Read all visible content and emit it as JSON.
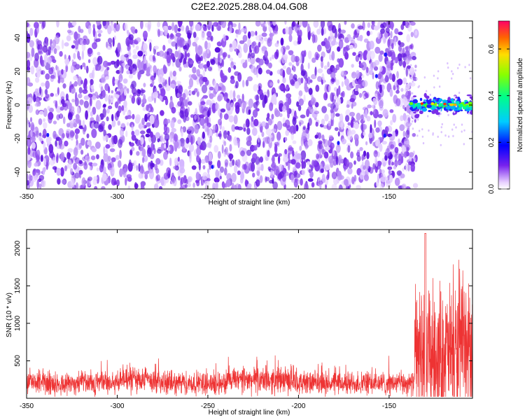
{
  "chart_data": [
    {
      "type": "heatmap",
      "title": "C2E2.2025.288.04.04.G08",
      "xlabel": "Height of straight line (km)",
      "ylabel": "Frequency (Hz)",
      "xlim": [
        -350,
        -104
      ],
      "ylim": [
        -50,
        50
      ],
      "x_ticks": [
        "-350",
        "-300",
        "-250",
        "-200",
        "-150"
      ],
      "y_ticks": [
        "-40",
        "-20",
        "0",
        "20",
        "40"
      ],
      "noise_region_x": [
        -350,
        -135
      ],
      "signal_region_x": [
        -138,
        -104
      ],
      "signal_frequency_hz": 0,
      "colorbar": {
        "label": "Normalized spectral amplitude",
        "range": [
          0.0,
          0.72
        ],
        "ticks": [
          "0.0",
          "0.2",
          "0.4",
          "0.6"
        ]
      }
    },
    {
      "type": "line",
      "xlabel": "Height of straight line (km)",
      "ylabel": "SNR (10 * v/v)",
      "xlim": [
        -350,
        -104
      ],
      "ylim": [
        0,
        2250
      ],
      "x_ticks": [
        "-350",
        "-300",
        "-250",
        "-200",
        "-150"
      ],
      "y_ticks": [
        "500",
        "1000",
        "1500",
        "2000"
      ],
      "series_color": "#ee3333",
      "segments": [
        {
          "x_range": [
            -350,
            -300
          ],
          "baseline": 200,
          "spread": 280
        },
        {
          "x_range": [
            -300,
            -280
          ],
          "baseline": 250,
          "spread": 330
        },
        {
          "x_range": [
            -280,
            -240
          ],
          "baseline": 200,
          "spread": 280
        },
        {
          "x_range": [
            -240,
            -200
          ],
          "baseline": 240,
          "spread": 320
        },
        {
          "x_range": [
            -200,
            -136
          ],
          "baseline": 200,
          "spread": 280
        },
        {
          "x_range": [
            -136,
            -104
          ],
          "baseline": 600,
          "spread": 1650
        }
      ],
      "peak_value": 2200,
      "peak_x": -130
    }
  ]
}
